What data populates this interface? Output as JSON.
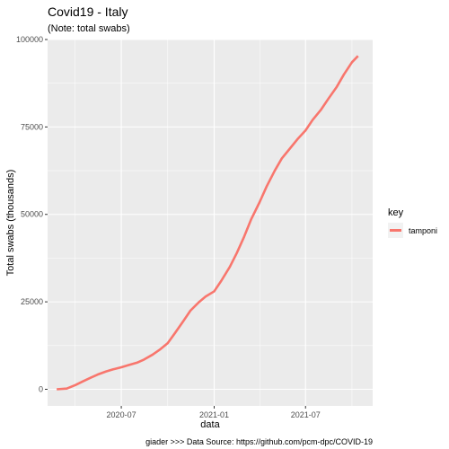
{
  "chart_data": {
    "type": "line",
    "title": "Covid19 - Italy",
    "subtitle": "(Note: total swabs)",
    "xlabel": "data",
    "ylabel": "Total swabs (thousands)",
    "caption": "giader >>> Data Source: https://github.com/pcm-dpc/COVID-19",
    "x_ticks": [
      "2020-07",
      "2021-01",
      "2021-07"
    ],
    "y_ticks": [
      "0",
      "25000",
      "50000",
      "75000",
      "100000"
    ],
    "xlim": [
      "2020-02-06",
      "2021-11-11"
    ],
    "ylim": [
      -4750,
      100000
    ],
    "grid": true,
    "legend": {
      "title": "key",
      "position": "right",
      "entries": [
        "tamponi"
      ]
    },
    "series": [
      {
        "name": "tamponi",
        "color": "#F8766D",
        "points": [
          [
            "2020-02-24",
            0
          ],
          [
            "2020-03-15",
            200
          ],
          [
            "2020-04-01",
            1200
          ],
          [
            "2020-04-15",
            2200
          ],
          [
            "2020-05-01",
            3300
          ],
          [
            "2020-05-15",
            4200
          ],
          [
            "2020-06-01",
            5100
          ],
          [
            "2020-06-15",
            5700
          ],
          [
            "2020-07-01",
            6300
          ],
          [
            "2020-07-15",
            6900
          ],
          [
            "2020-08-01",
            7600
          ],
          [
            "2020-08-15",
            8500
          ],
          [
            "2020-09-01",
            9900
          ],
          [
            "2020-09-15",
            11300
          ],
          [
            "2020-10-01",
            13200
          ],
          [
            "2020-10-15",
            16000
          ],
          [
            "2020-11-01",
            19500
          ],
          [
            "2020-11-15",
            22500
          ],
          [
            "2020-12-01",
            24800
          ],
          [
            "2020-12-15",
            26500
          ],
          [
            "2021-01-01",
            28000
          ],
          [
            "2021-01-15",
            31000
          ],
          [
            "2021-02-01",
            35000
          ],
          [
            "2021-02-15",
            39000
          ],
          [
            "2021-03-01",
            43500
          ],
          [
            "2021-03-15",
            48500
          ],
          [
            "2021-04-01",
            53500
          ],
          [
            "2021-04-15",
            58000
          ],
          [
            "2021-05-01",
            62500
          ],
          [
            "2021-05-15",
            66000
          ],
          [
            "2021-06-01",
            69000
          ],
          [
            "2021-06-15",
            71500
          ],
          [
            "2021-07-01",
            74000
          ],
          [
            "2021-07-15",
            77000
          ],
          [
            "2021-08-01",
            80000
          ],
          [
            "2021-08-15",
            83000
          ],
          [
            "2021-09-01",
            86500
          ],
          [
            "2021-09-15",
            90000
          ],
          [
            "2021-10-01",
            93500
          ],
          [
            "2021-10-13",
            95300
          ]
        ]
      }
    ]
  }
}
